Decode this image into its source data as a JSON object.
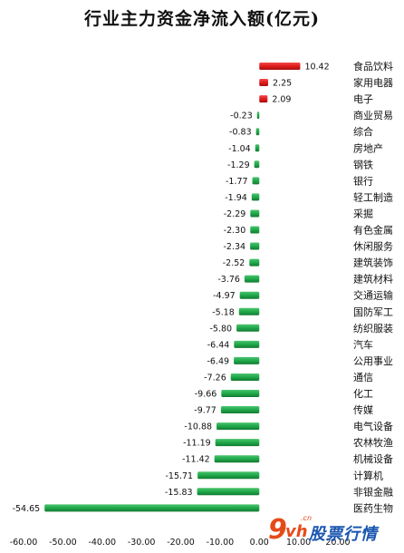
{
  "chart_data": {
    "type": "bar",
    "orientation": "horizontal",
    "title": "行业主力资金净流入额(亿元)",
    "categories": [
      "食品饮料",
      "家用电器",
      "电子",
      "商业贸易",
      "综合",
      "房地产",
      "钢铁",
      "银行",
      "轻工制造",
      "采掘",
      "有色金属",
      "休闲服务",
      "建筑装饰",
      "建筑材料",
      "交通运输",
      "国防军工",
      "纺织服装",
      "汽车",
      "公用事业",
      "通信",
      "化工",
      "传媒",
      "电气设备",
      "农林牧渔",
      "机械设备",
      "计算机",
      "非银金融",
      "医药生物"
    ],
    "values": [
      10.42,
      2.25,
      2.09,
      -0.23,
      -0.83,
      -1.04,
      -1.29,
      -1.77,
      -1.94,
      -2.29,
      -2.3,
      -2.34,
      -2.52,
      -3.76,
      -4.97,
      -5.18,
      -5.8,
      -6.44,
      -6.49,
      -7.26,
      -9.66,
      -9.77,
      -10.88,
      -11.19,
      -11.42,
      -15.71,
      -15.83,
      -54.65
    ],
    "value_labels": [
      "10.42",
      "2.25",
      "2.09",
      "-0.23",
      "-0.83",
      "-1.04",
      "-1.29",
      "-1.77",
      "-1.94",
      "-2.29",
      "-2.30",
      "-2.34",
      "-2.52",
      "-3.76",
      "-4.97",
      "-5.18",
      "-5.80",
      "-6.44",
      "-6.49",
      "-7.26",
      "-9.66",
      "-9.77",
      "-10.88",
      "-11.19",
      "-11.42",
      "-15.71",
      "-15.83",
      "-54.65"
    ],
    "xlim": [
      -60,
      20
    ],
    "x_ticks": [
      "-60.00",
      "-50.00",
      "-40.00",
      "-30.00",
      "-20.00",
      "-10.00",
      "0.00",
      "10.00",
      "20.00"
    ],
    "colors": {
      "positive": "#e01b1b",
      "negative": "#1fa84a"
    },
    "grid": false,
    "legend": "none"
  },
  "watermark": {
    "nine": "9",
    "vh": "vh",
    "domain": ".cn",
    "text": "股票行情"
  }
}
